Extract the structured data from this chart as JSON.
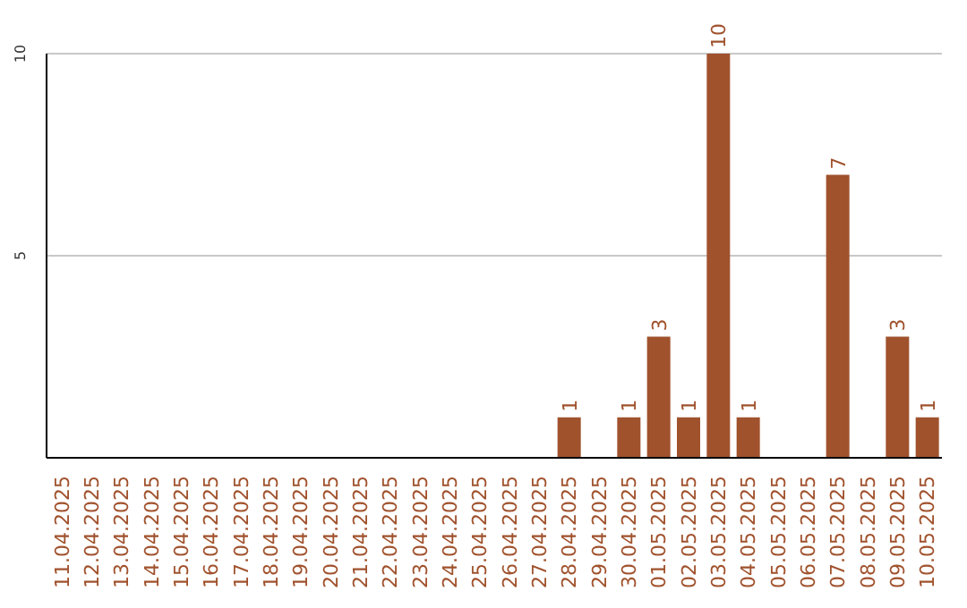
{
  "chart_data": {
    "type": "bar",
    "categories": [
      "11.04.2025",
      "12.04.2025",
      "13.04.2025",
      "14.04.2025",
      "15.04.2025",
      "16.04.2025",
      "17.04.2025",
      "18.04.2025",
      "19.04.2025",
      "20.04.2025",
      "21.04.2025",
      "22.04.2025",
      "23.04.2025",
      "24.04.2025",
      "25.04.2025",
      "26.04.2025",
      "27.04.2025",
      "28.04.2025",
      "29.04.2025",
      "30.04.2025",
      "01.05.2025",
      "02.05.2025",
      "03.05.2025",
      "04.05.2025",
      "05.05.2025",
      "06.05.2025",
      "07.05.2025",
      "08.05.2025",
      "09.05.2025",
      "10.05.2025"
    ],
    "values": [
      0,
      0,
      0,
      0,
      0,
      0,
      0,
      0,
      0,
      0,
      0,
      0,
      0,
      0,
      0,
      0,
      0,
      1,
      0,
      1,
      3,
      1,
      10,
      1,
      0,
      0,
      7,
      0,
      3,
      1
    ],
    "color": "#a0522d",
    "value_labels": [
      null,
      null,
      null,
      null,
      null,
      null,
      null,
      null,
      null,
      null,
      null,
      null,
      null,
      null,
      null,
      null,
      null,
      "1",
      null,
      "1",
      "3",
      "1",
      "10",
      "1",
      null,
      null,
      "7",
      null,
      "3",
      "1"
    ],
    "ylim": [
      0,
      10
    ],
    "yticks": [
      5,
      10
    ],
    "grid": "y"
  }
}
